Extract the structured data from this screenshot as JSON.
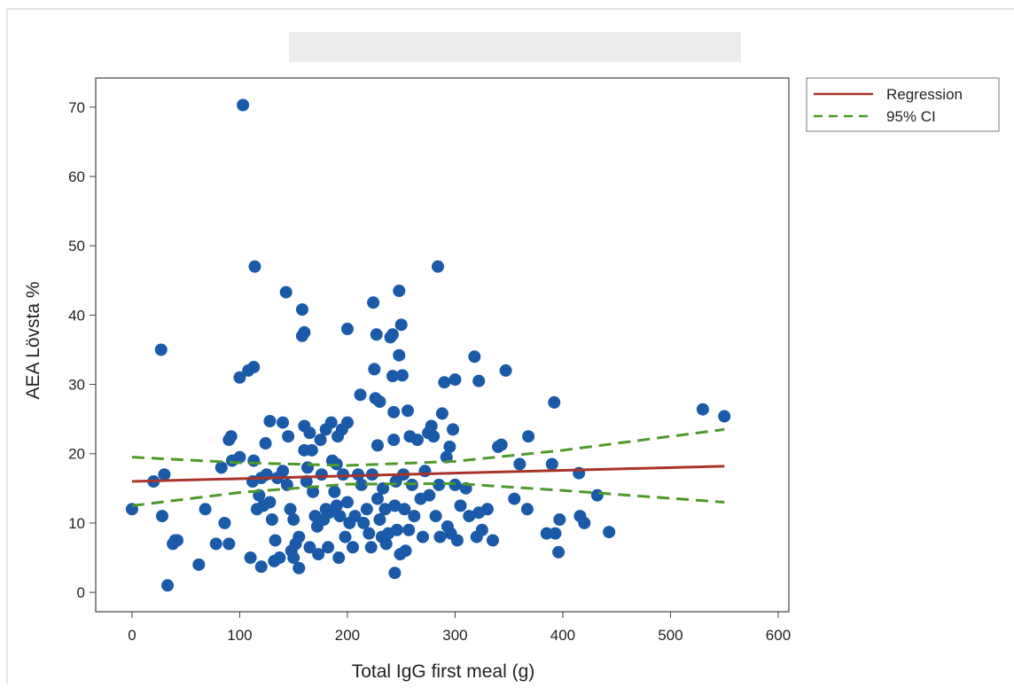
{
  "chart_data": {
    "type": "scatter",
    "x_label": "Total IgG first meal (g)",
    "y_label": "AEA Lövsta %",
    "xlim": [
      -33.7,
      609.9
    ],
    "ylim": [
      -2.8,
      74.2
    ],
    "xticks": [
      0,
      100,
      200,
      300,
      400,
      500,
      600
    ],
    "yticks": [
      0,
      10,
      20,
      30,
      40,
      50,
      60,
      70
    ],
    "grid": false,
    "legend": "outside-top-right",
    "points": {
      "color": "#1a5aa8",
      "x": [
        0,
        20,
        27,
        28,
        30,
        33,
        38,
        40,
        42,
        62,
        68,
        78,
        83,
        86,
        90,
        90,
        92,
        93,
        100,
        100,
        103,
        108,
        110,
        112,
        113,
        114,
        113,
        116,
        118,
        120,
        120,
        122,
        124,
        125,
        128,
        128,
        130,
        132,
        133,
        135,
        137,
        140,
        140,
        143,
        144,
        145,
        147,
        148,
        150,
        150,
        152,
        155,
        155,
        158,
        158,
        160,
        160,
        160,
        162,
        163,
        165,
        165,
        167,
        168,
        170,
        172,
        173,
        175,
        176,
        178,
        180,
        180,
        182,
        183,
        185,
        186,
        188,
        190,
        190,
        191,
        192,
        193,
        195,
        196,
        198,
        200,
        200,
        200,
        202,
        205,
        207,
        210,
        212,
        213,
        215,
        218,
        220,
        222,
        223,
        224,
        225,
        226,
        227,
        228,
        228,
        230,
        230,
        232,
        233,
        235,
        236,
        238,
        240,
        242,
        242,
        243,
        243,
        244,
        244,
        245,
        246,
        248,
        248,
        249,
        250,
        251,
        252,
        253,
        254,
        256,
        257,
        258,
        260,
        262,
        265,
        268,
        270,
        272,
        275,
        276,
        278,
        280,
        282,
        284,
        285,
        286,
        288,
        290,
        292,
        293,
        295,
        296,
        298,
        300,
        300,
        302,
        305,
        310,
        313,
        318,
        320,
        322,
        322,
        325,
        330,
        335,
        340,
        343,
        347,
        355,
        360,
        367,
        368,
        385,
        390,
        392,
        393,
        396,
        397,
        415,
        416,
        420,
        432,
        443,
        530,
        550
      ],
      "y": [
        12,
        16,
        35,
        11,
        17,
        1,
        7,
        7.5,
        7.5,
        4,
        12,
        7,
        18,
        10,
        7,
        22,
        22.5,
        19,
        31,
        19.5,
        70.3,
        32,
        5,
        16,
        32.5,
        47,
        19,
        12,
        14,
        16.5,
        3.7,
        12.5,
        21.5,
        17,
        24.7,
        13,
        10.5,
        4.5,
        7.5,
        16.5,
        5,
        24.5,
        17.5,
        43.3,
        15.5,
        22.5,
        12,
        6,
        10.5,
        5,
        7,
        3.5,
        8,
        40.8,
        37,
        37.5,
        24,
        20.5,
        16,
        18,
        23,
        6.5,
        20.5,
        14.5,
        11,
        9.5,
        5.5,
        22,
        17,
        10.5,
        23.5,
        12,
        6.5,
        11.5,
        24.5,
        19,
        14.5,
        12.5,
        18.5,
        22.5,
        5,
        11,
        23.5,
        17,
        8,
        24.5,
        38,
        13,
        10,
        6.5,
        11,
        17,
        28.5,
        15.5,
        10,
        12,
        8.5,
        6.5,
        17,
        41.8,
        32.2,
        28,
        37.2,
        21.2,
        13.5,
        27.5,
        10.5,
        8,
        15,
        12,
        7,
        8.5,
        36.8,
        37.2,
        31.2,
        26,
        22,
        2.8,
        12.5,
        16,
        9,
        43.5,
        34.2,
        5.5,
        38.6,
        31.3,
        17,
        12,
        6,
        26.2,
        9,
        22.5,
        15.5,
        11,
        22,
        13.5,
        8,
        17.5,
        23,
        14,
        24,
        22.5,
        11,
        47,
        15.5,
        8,
        25.8,
        30.3,
        19.5,
        9.5,
        21,
        8.5,
        23.5,
        30.7,
        15.5,
        7.5,
        12.5,
        15,
        11,
        34,
        8,
        30.5,
        11.5,
        9,
        12,
        7.5,
        21,
        21.3,
        32,
        13.5,
        18.5,
        12,
        22.5,
        8.5,
        18.5,
        27.4,
        8.5,
        5.8,
        10.5,
        17.2,
        11,
        10,
        14,
        8.7,
        26.4,
        25.4
      ]
    },
    "lines": [
      {
        "name": "Regression",
        "color": "#a8342a",
        "style": "solid",
        "x": [
          0,
          550
        ],
        "y": [
          16,
          18.2
        ]
      },
      {
        "name": "95% CI",
        "color": "#4c9a2a",
        "style": "dashed",
        "x": [
          0,
          100,
          200,
          300,
          400,
          550
        ],
        "upper": [
          19.5,
          18.7,
          18.3,
          18.9,
          20.5,
          23.5
        ],
        "lower": [
          12.5,
          14.4,
          15.6,
          15.7,
          14.7,
          13.0
        ]
      }
    ]
  }
}
